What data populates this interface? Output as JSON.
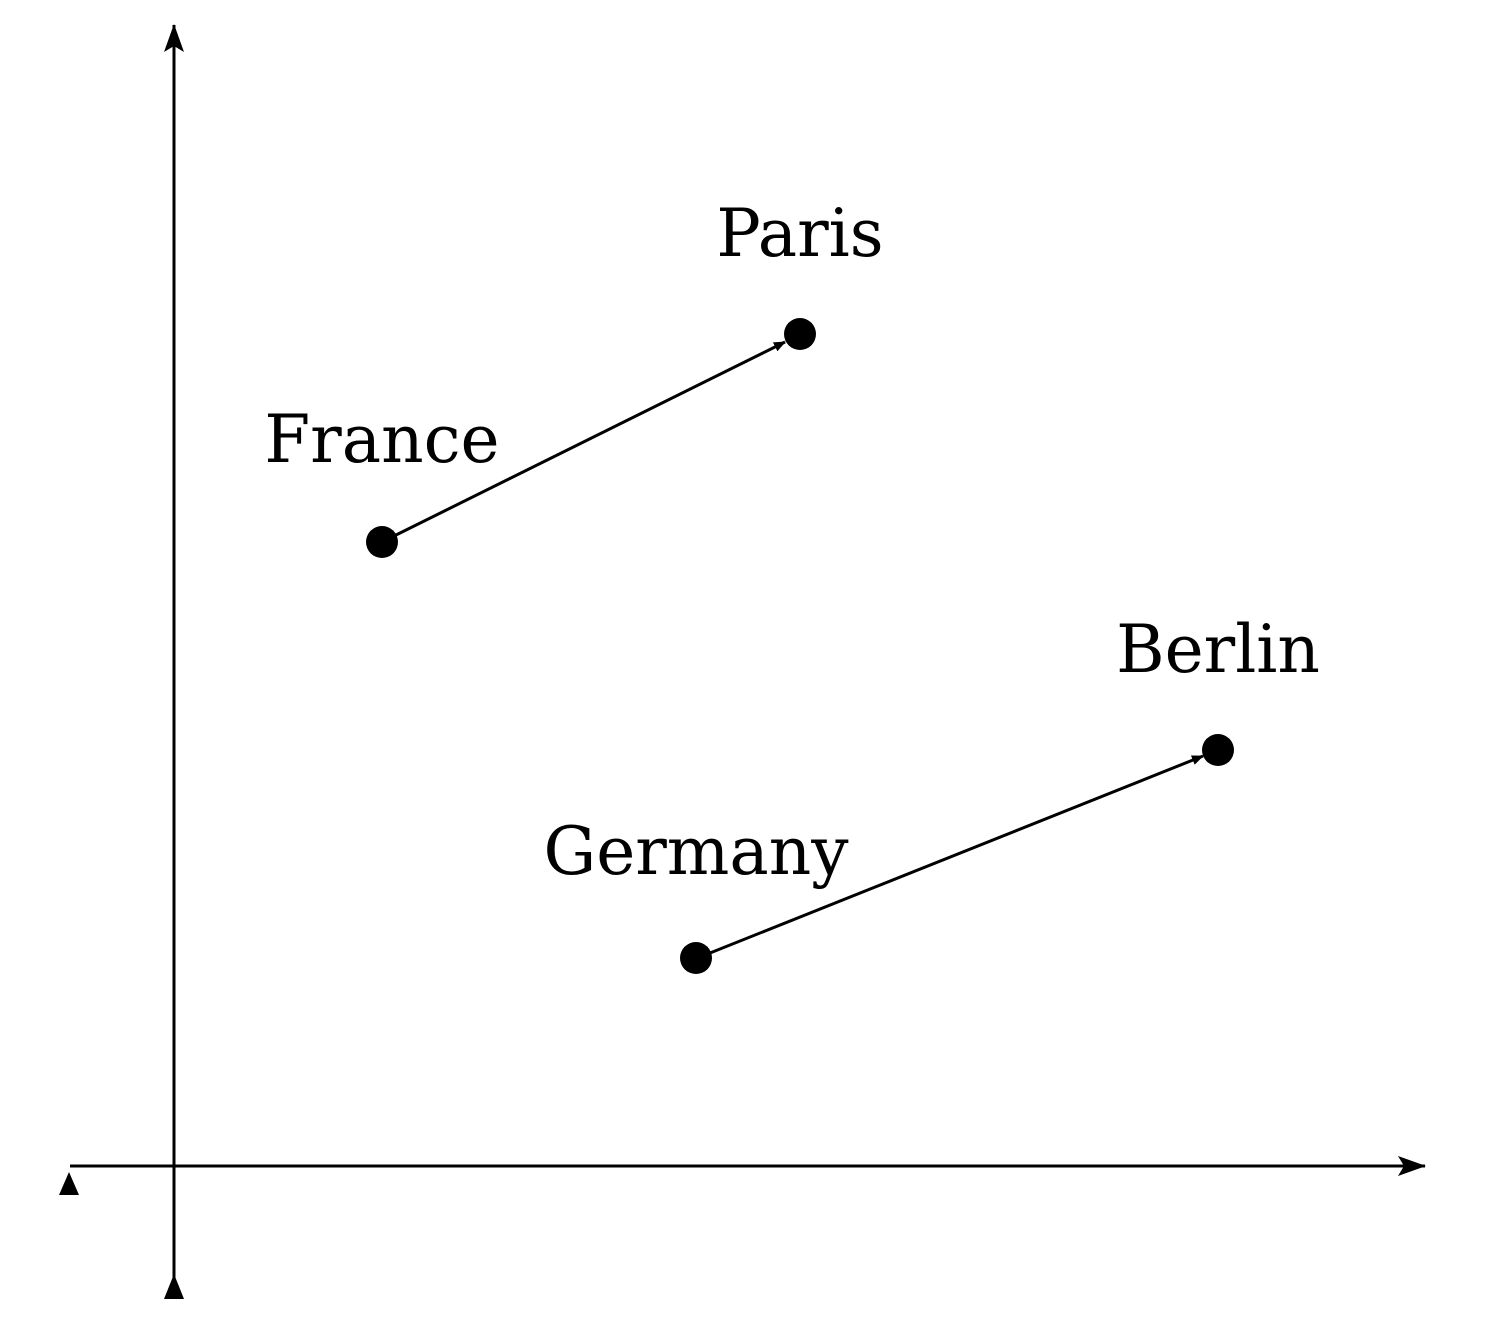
{
  "diagram": {
    "ink_color": "#000000",
    "background": "#ffffff",
    "points": [
      {
        "id": "france",
        "label": "France",
        "x": 2,
        "y": 6
      },
      {
        "id": "paris",
        "label": "Paris",
        "x": 6,
        "y": 8
      },
      {
        "id": "germany",
        "label": "Germany",
        "x": 5,
        "y": 2
      },
      {
        "id": "berlin",
        "label": "Berlin",
        "x": 10,
        "y": 4
      }
    ],
    "arrows": [
      {
        "from": "france",
        "to": "paris"
      },
      {
        "from": "germany",
        "to": "berlin"
      }
    ]
  }
}
